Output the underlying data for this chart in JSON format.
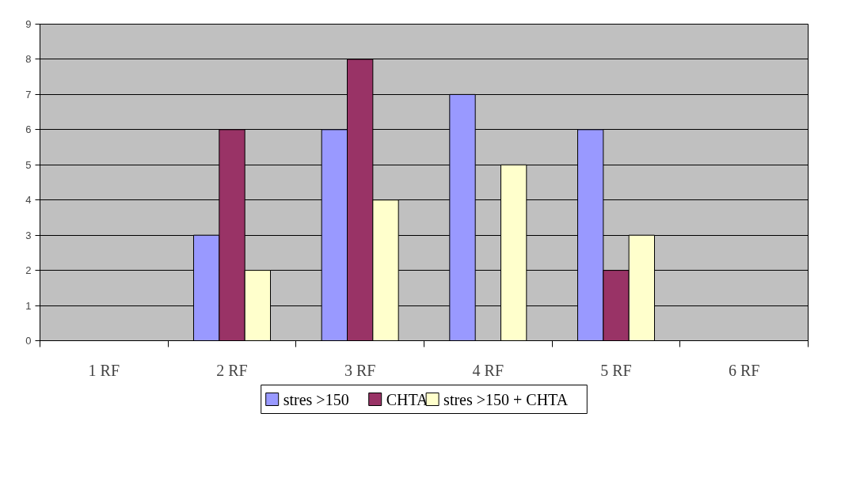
{
  "chart_data": {
    "type": "bar",
    "categories": [
      "1 RF",
      "2 RF",
      "3 RF",
      "4 RF",
      "5 RF",
      "6 RF"
    ],
    "series": [
      {
        "name": "stres >150",
        "color": "#9999ff",
        "values": [
          null,
          3,
          6,
          7,
          6,
          null
        ]
      },
      {
        "name": "CHTA",
        "color": "#993366",
        "values": [
          null,
          6,
          8,
          null,
          2,
          null
        ]
      },
      {
        "name": "stres >150 + CHTA",
        "color": "#ffffcc",
        "values": [
          null,
          2,
          4,
          5,
          3,
          null
        ]
      }
    ],
    "ylim": [
      0,
      9
    ],
    "yticks": [
      0,
      1,
      2,
      3,
      4,
      5,
      6,
      7,
      8,
      9
    ],
    "grid": "y",
    "legend": "bottom"
  }
}
